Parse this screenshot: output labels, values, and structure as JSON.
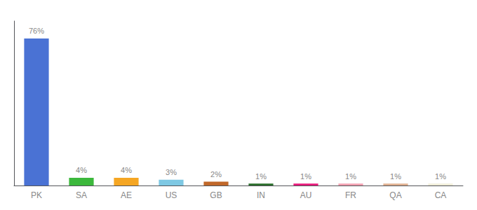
{
  "chart_data": {
    "type": "bar",
    "categories": [
      "PK",
      "SA",
      "AE",
      "US",
      "GB",
      "IN",
      "AU",
      "FR",
      "QA",
      "CA"
    ],
    "values": [
      76,
      4,
      4,
      3,
      2,
      1,
      1,
      1,
      1,
      1
    ],
    "value_labels": [
      "76%",
      "4%",
      "4%",
      "3%",
      "2%",
      "1%",
      "1%",
      "1%",
      "1%",
      "1%"
    ],
    "colors": [
      "#4a72d4",
      "#3cb83c",
      "#f5a623",
      "#7ec8e3",
      "#c0682a",
      "#2a6e2a",
      "#e8197a",
      "#f2a0b0",
      "#e0b090",
      "#f0edd8"
    ],
    "ylim": [
      0,
      85
    ],
    "grid": false,
    "data_labels": true,
    "tick_labels": "x"
  }
}
